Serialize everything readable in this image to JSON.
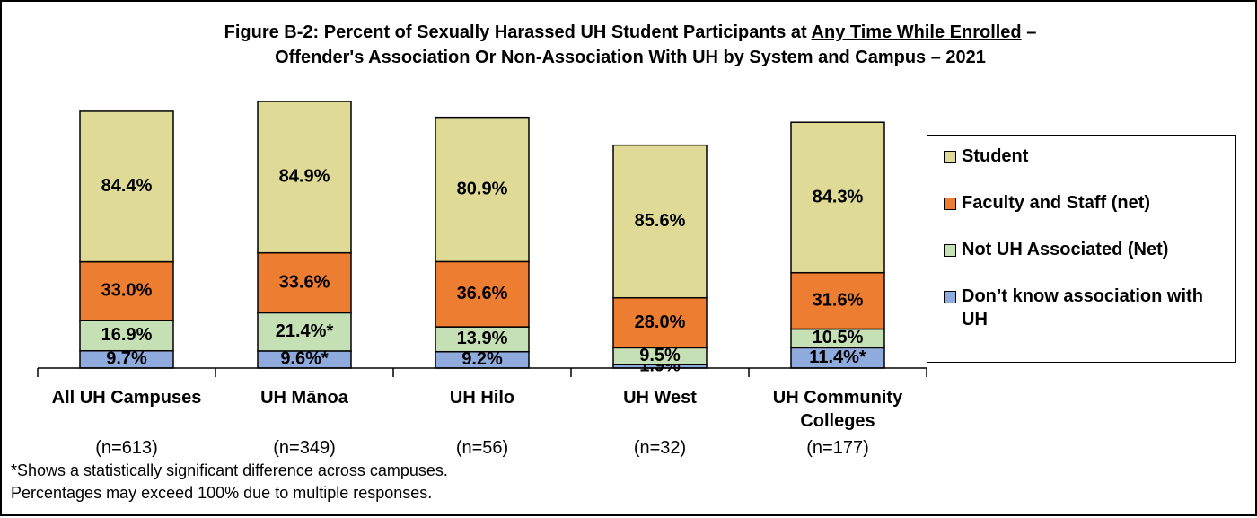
{
  "chart_data": {
    "type": "stacked_bar",
    "title": [
      "Figure B-2: Percent of Sexually Harassed UH Student Participants at",
      "Any Time While Enrolled",
      "–",
      "Offender's Association Or Non-Association With UH by System and Campus – 2021"
    ],
    "categories": [
      "All UH Campuses",
      "UH Mānoa",
      "UH Hilo",
      "UH West",
      "UH Community Colleges"
    ],
    "sample_sizes": [
      "(n=613)",
      "(n=349)",
      "(n=56)",
      "(n=32)",
      "(n=177)"
    ],
    "series": [
      {
        "name": "Don’t know association with UH",
        "color": "#8faadc",
        "values": [
          9.7,
          9.6,
          9.2,
          1.9,
          11.4
        ],
        "value_labels": [
          "9.7%",
          "9.6%*",
          "9.2%",
          "1.9%",
          "11.4%*"
        ]
      },
      {
        "name": "Not UH Associated (Net)",
        "color": "#c5e0b4",
        "values": [
          16.9,
          21.4,
          13.9,
          9.5,
          10.5
        ],
        "value_labels": [
          "16.9%",
          "21.4%*",
          "13.9%",
          "9.5%",
          "10.5%"
        ]
      },
      {
        "name": "Faculty and Staff (net)",
        "color": "#ed7d31",
        "values": [
          33.0,
          33.6,
          36.6,
          28.0,
          31.6
        ],
        "value_labels": [
          "33.0%",
          "33.6%",
          "36.6%",
          "28.0%",
          "31.6%"
        ]
      },
      {
        "name": "Student",
        "color": "#dfdb96",
        "values": [
          84.4,
          84.9,
          80.9,
          85.6,
          84.3
        ],
        "value_labels": [
          "84.4%",
          "84.9%",
          "80.9%",
          "85.6%",
          "84.3%"
        ]
      }
    ],
    "ylim": [
      0,
      150
    ],
    "footnotes": [
      "*Shows a statistically significant difference across campuses.",
      "Percentages may exceed 100% due to multiple responses."
    ]
  }
}
